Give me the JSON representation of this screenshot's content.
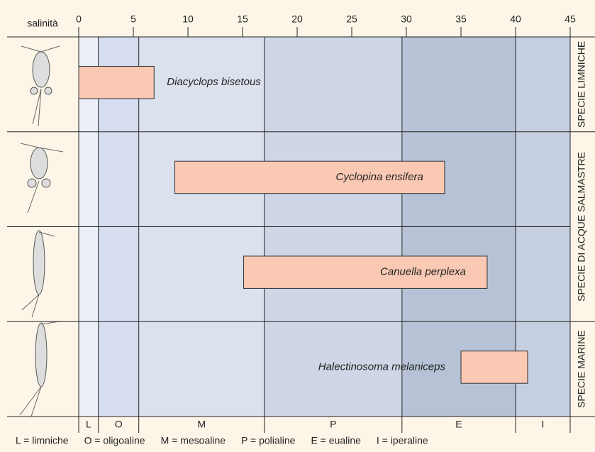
{
  "chart_data": {
    "type": "range",
    "axis_label": "salinità",
    "xlim": [
      0,
      45
    ],
    "xticks": [
      0,
      5,
      10,
      15,
      20,
      25,
      30,
      35,
      40,
      45
    ],
    "categories": [
      "Diacyclops bisetous",
      "Cyclopina ensifera",
      "Canuella perplexa",
      "Halectinosoma melaniceps"
    ],
    "values": [
      [
        0,
        6.9
      ],
      [
        8.8,
        33.5
      ],
      [
        15.1,
        37.4
      ],
      [
        35,
        41.1
      ]
    ],
    "color": "#fac9b4",
    "zones": [
      {
        "code": "L",
        "label": "L = limniche",
        "start": 0,
        "end": 1.8,
        "color": "#eceff8"
      },
      {
        "code": "O",
        "label": "O = oligoaline",
        "start": 1.8,
        "end": 5.5,
        "color": "#d7ddf0"
      },
      {
        "code": "M",
        "label": "M = mesoaline",
        "start": 5.5,
        "end": 17,
        "color": "#dce1ee"
      },
      {
        "code": "P",
        "label": "P = polialine",
        "start": 17,
        "end": 29.6,
        "color": "#cfd7e6"
      },
      {
        "code": "E",
        "label": "E = eualine",
        "start": 29.6,
        "end": 40,
        "color": "#b7c2d6"
      },
      {
        "code": "I",
        "label": "I = iperaline",
        "start": 40,
        "end": 45,
        "color": "#c6cfe1"
      }
    ],
    "groups": [
      {
        "label": "SPECIE LIMNICHE",
        "rows": [
          0,
          0
        ]
      },
      {
        "label": "SPECIE DI ACQUE SALMASTRE",
        "rows": [
          1,
          2
        ]
      },
      {
        "label": "SPECIE MARINE",
        "rows": [
          3,
          3
        ]
      }
    ]
  }
}
